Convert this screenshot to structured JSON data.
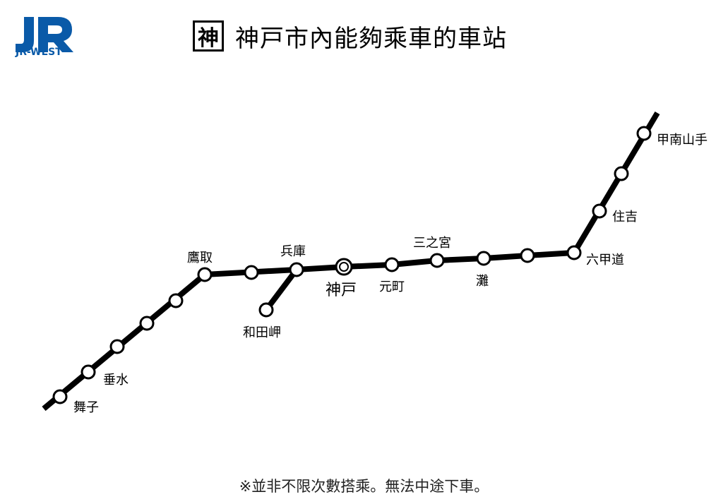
{
  "logo": {
    "text": "JR-WEST",
    "color": "#0a5aa8"
  },
  "title": {
    "badge": "神",
    "text": "神戸市內能夠乘車的車站"
  },
  "stations": {
    "maiko": "舞子",
    "tarumi": "垂水",
    "takatori": "鷹取",
    "hyogo": "兵庫",
    "wadamisaki": "和田岬",
    "kobe": "神戸",
    "motomachi": "元町",
    "sannomiya": "三之宮",
    "nada": "灘",
    "rokkomichi": "六甲道",
    "sumiyoshi": "住吉",
    "konanyamate": "甲南山手"
  },
  "footnote": "※並非不限次數搭乘。無法中途下車。",
  "colors": {
    "line": "#000000",
    "station_fill": "#ffffff",
    "logo_blue": "#0a5aa8"
  }
}
